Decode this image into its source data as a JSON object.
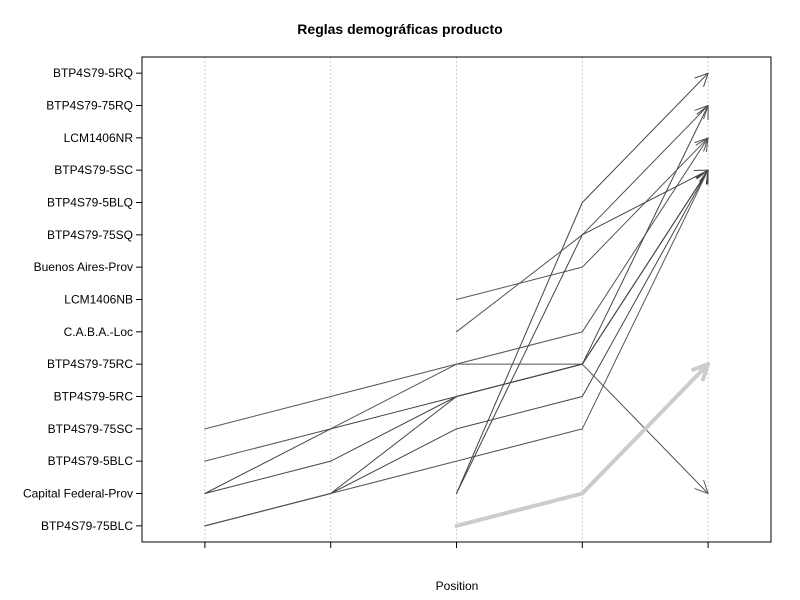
{
  "chart_data": {
    "type": "line",
    "title": "Reglas demográficas producto",
    "xlabel": "Position",
    "ylabel": "",
    "x_positions": [
      1,
      2,
      3,
      4,
      5
    ],
    "xlim": [
      0.5,
      5.5
    ],
    "ylim": [
      0.5,
      15.5
    ],
    "grid": {
      "vertical": true,
      "horizontal": false
    },
    "y_categories": [
      "BTP4S79-75BLC",
      "Capital Federal-Prov",
      "BTP4S79-5BLC",
      "BTP4S79-75SC",
      "BTP4S79-5RC",
      "BTP4S79-75RC",
      "C.A.B.A.-Loc",
      "LCM1406NB",
      "Buenos Aires-Prov",
      "BTP4S79-75SQ",
      "BTP4S79-5BLQ",
      "BTP4S79-5SC",
      "LCM1406NR",
      "BTP4S79-75RQ",
      "BTP4S79-5RQ"
    ],
    "series": [
      {
        "points": [
          [
            1,
            4
          ],
          [
            2,
            5
          ],
          [
            3,
            6
          ],
          [
            4,
            6
          ],
          [
            5,
            2
          ]
        ],
        "color": "#555555",
        "width": 1
      },
      {
        "points": [
          [
            1,
            3
          ],
          [
            2,
            4
          ],
          [
            3,
            6
          ],
          [
            4,
            7
          ],
          [
            5,
            13
          ]
        ],
        "color": "#555555",
        "width": 1
      },
      {
        "points": [
          [
            1,
            2
          ],
          [
            2,
            3
          ],
          [
            3,
            5
          ],
          [
            4,
            6
          ],
          [
            5,
            12
          ]
        ],
        "color": "#444444",
        "width": 1
      },
      {
        "points": [
          [
            1,
            2
          ],
          [
            2,
            4
          ],
          [
            3,
            5
          ],
          [
            4,
            6
          ],
          [
            5,
            14
          ]
        ],
        "color": "#444444",
        "width": 1
      },
      {
        "points": [
          [
            1,
            1
          ],
          [
            2,
            2
          ],
          [
            3,
            5
          ],
          [
            4,
            6
          ],
          [
            5,
            12
          ]
        ],
        "color": "#444444",
        "width": 1
      },
      {
        "points": [
          [
            1,
            1
          ],
          [
            2,
            2
          ],
          [
            3,
            4
          ],
          [
            4,
            5
          ],
          [
            5,
            12
          ]
        ],
        "color": "#444444",
        "width": 1
      },
      {
        "points": [
          [
            1,
            1
          ],
          [
            2,
            2
          ],
          [
            3,
            3
          ],
          [
            4,
            4
          ],
          [
            5,
            12
          ]
        ],
        "color": "#555555",
        "width": 1
      },
      {
        "points": [
          [
            3,
            8
          ],
          [
            4,
            9
          ],
          [
            5,
            13
          ]
        ],
        "color": "#555555",
        "width": 1
      },
      {
        "points": [
          [
            3,
            7
          ],
          [
            4,
            10
          ],
          [
            5,
            14
          ]
        ],
        "color": "#555555",
        "width": 1
      },
      {
        "points": [
          [
            3,
            2
          ],
          [
            4,
            11
          ],
          [
            5,
            15
          ]
        ],
        "color": "#444444",
        "width": 1
      },
      {
        "points": [
          [
            3,
            2
          ],
          [
            4,
            10
          ],
          [
            5,
            12
          ]
        ],
        "color": "#444444",
        "width": 1
      },
      {
        "points": [
          [
            3,
            1
          ],
          [
            4,
            2
          ],
          [
            5,
            6
          ]
        ],
        "color": "#cccccc",
        "width": 4
      }
    ]
  }
}
